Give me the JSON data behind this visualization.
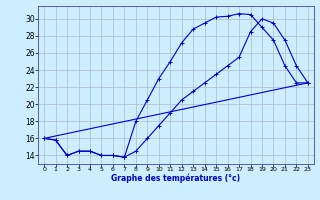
{
  "xlabel": "Graphe des températures (°c)",
  "bg_color": "#cceeff",
  "grid_color": "#aabbcc",
  "line_color": "#0000cc",
  "xmin": -0.5,
  "xmax": 23.5,
  "ymin": 13.0,
  "ymax": 31.5,
  "yticks": [
    14,
    16,
    18,
    20,
    22,
    24,
    26,
    28,
    30
  ],
  "xticks": [
    0,
    1,
    2,
    3,
    4,
    5,
    6,
    7,
    8,
    9,
    10,
    11,
    12,
    13,
    14,
    15,
    16,
    17,
    18,
    19,
    20,
    21,
    22,
    23
  ],
  "line1_x": [
    0,
    1,
    2,
    3,
    4,
    5,
    6,
    7,
    8,
    9,
    10,
    11,
    12,
    13,
    14,
    15,
    16,
    17,
    18,
    19,
    20,
    21,
    22,
    23
  ],
  "line1_y": [
    16.0,
    15.8,
    14.0,
    14.5,
    14.5,
    14.0,
    14.0,
    13.8,
    18.0,
    20.5,
    23.0,
    25.0,
    27.2,
    28.8,
    29.5,
    30.2,
    30.3,
    30.6,
    30.5,
    29.0,
    27.5,
    24.5,
    22.5,
    22.5
  ],
  "line2_x": [
    0,
    1,
    2,
    3,
    4,
    5,
    6,
    7,
    8,
    9,
    10,
    11,
    12,
    13,
    14,
    15,
    16,
    17,
    18,
    19,
    20,
    21,
    22,
    23
  ],
  "line2_y": [
    16.0,
    15.8,
    14.0,
    14.5,
    14.5,
    14.0,
    14.0,
    13.8,
    14.5,
    16.0,
    17.5,
    19.0,
    20.5,
    21.5,
    22.5,
    23.5,
    24.5,
    25.5,
    28.5,
    30.0,
    29.5,
    27.5,
    24.5,
    22.5
  ],
  "line3_x": [
    0,
    23
  ],
  "line3_y": [
    16.0,
    22.5
  ]
}
